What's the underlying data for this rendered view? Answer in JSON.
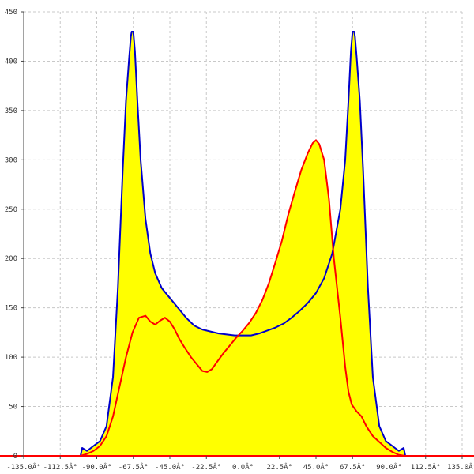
{
  "chart_data": {
    "type": "area",
    "title": "",
    "xlabel": "",
    "ylabel": "",
    "xlim": [
      -135,
      135
    ],
    "ylim": [
      0,
      450
    ],
    "grid": true,
    "x_ticks": [
      -135,
      -112.5,
      -90,
      -67.5,
      -45,
      -22.5,
      0,
      22.5,
      45,
      67.5,
      90,
      112.5,
      135
    ],
    "x_tick_labels": [
      "-135.0Â°",
      "-112.5Â°",
      "-90.0Â°",
      "-67.5Â°",
      "-45.0Â°",
      "-22.5Â°",
      "0.0Â°",
      "22.5Â°",
      "45.0Â°",
      "67.5Â°",
      "90.0Â°",
      "112.5Â°",
      "135.0Â°"
    ],
    "y_ticks": [
      0,
      50,
      100,
      150,
      200,
      250,
      300,
      350,
      400,
      450
    ],
    "y_tick_labels": [
      "0",
      "50",
      "100",
      "150",
      "200",
      "250",
      "300",
      "350",
      "400",
      "450"
    ],
    "fill_color": "#ffff00",
    "series": [
      {
        "color": "#0000cc",
        "x": [
          -100,
          -99,
          -96,
          -92,
          -88,
          -84,
          -80,
          -77,
          -74,
          -72,
          -70,
          -69,
          -68.5,
          -67.5,
          -66.5,
          -65,
          -63,
          -60,
          -57,
          -54,
          -50,
          -45,
          -40,
          -35,
          -30,
          -25,
          -20,
          -15,
          -10,
          -5,
          0,
          5,
          10,
          15,
          20,
          25,
          30,
          35,
          40,
          45,
          50,
          55,
          60,
          63,
          65,
          66.5,
          67.5,
          68.5,
          69,
          70,
          72,
          74,
          77,
          80,
          84,
          88,
          92,
          96,
          99,
          100
        ],
        "values": [
          0,
          8,
          5,
          10,
          15,
          30,
          80,
          170,
          290,
          360,
          405,
          425,
          430,
          430,
          410,
          360,
          300,
          240,
          205,
          185,
          170,
          160,
          150,
          140,
          132,
          128,
          126,
          124,
          123,
          122,
          122,
          122,
          124,
          127,
          130,
          134,
          140,
          147,
          155,
          165,
          180,
          205,
          250,
          300,
          360,
          410,
          430,
          430,
          425,
          405,
          360,
          290,
          170,
          80,
          30,
          15,
          10,
          5,
          8,
          0
        ]
      },
      {
        "color": "#ff0000",
        "x": [
          -100,
          -96,
          -92,
          -88,
          -84,
          -80,
          -76,
          -72,
          -68,
          -64,
          -60,
          -57,
          -54,
          -51,
          -48,
          -45,
          -42,
          -39,
          -36,
          -32,
          -28,
          -25,
          -22,
          -19,
          -16,
          -12,
          -8,
          -4,
          0,
          4,
          8,
          12,
          16,
          20,
          24,
          28,
          32,
          36,
          40,
          43,
          45,
          47,
          50,
          53,
          56,
          60,
          63,
          65,
          67,
          70,
          73,
          76,
          80,
          84,
          88,
          92,
          96,
          100
        ],
        "values": [
          0,
          2,
          5,
          10,
          20,
          40,
          70,
          100,
          125,
          140,
          142,
          136,
          133,
          137,
          140,
          136,
          128,
          118,
          110,
          100,
          92,
          86,
          85,
          88,
          95,
          104,
          112,
          120,
          127,
          135,
          145,
          158,
          175,
          196,
          218,
          245,
          268,
          290,
          307,
          317,
          320,
          316,
          300,
          260,
          200,
          140,
          90,
          65,
          52,
          45,
          40,
          30,
          20,
          14,
          8,
          4,
          1,
          0
        ]
      }
    ]
  }
}
